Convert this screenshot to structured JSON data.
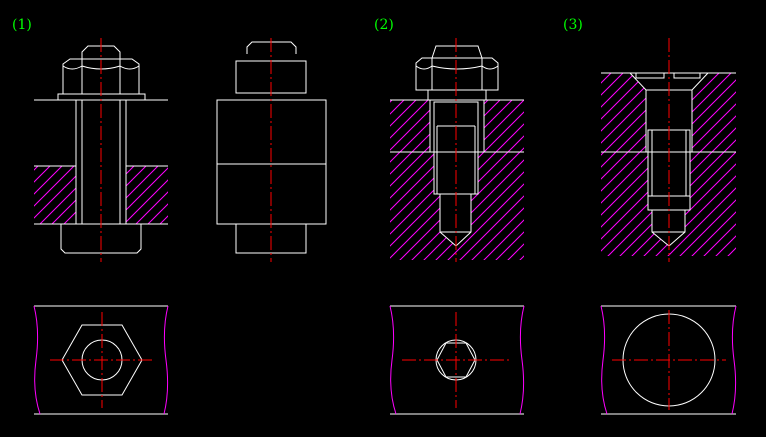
{
  "labels": {
    "view1": "(1)",
    "view2": "(2)",
    "view3": "(3)"
  },
  "colors": {
    "background": "#000000",
    "outline": "#ffffff",
    "center_line": "#ff0000",
    "hatch": "#ff00ff",
    "label": "#00ff00"
  }
}
